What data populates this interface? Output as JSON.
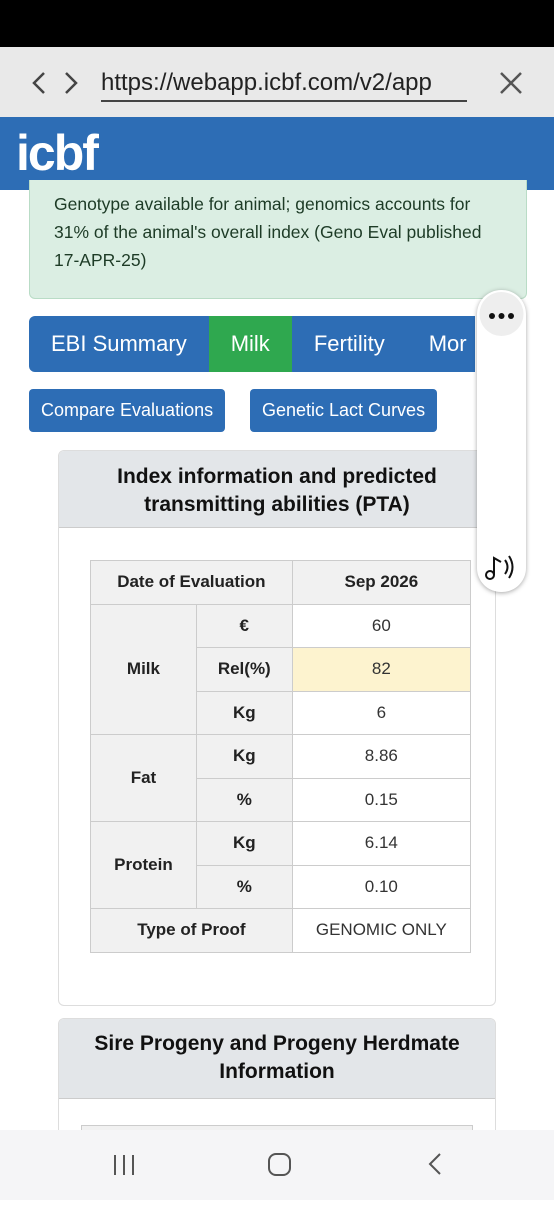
{
  "browser": {
    "url": "https://webapp.icbf.com/v2/app"
  },
  "header": {
    "logo": "icbf"
  },
  "notice": "Genotype available for animal; genomics accounts for 31% of the animal's overall index (Geno Eval published 17-APR-25)",
  "tabs": [
    {
      "label": "EBI Summary",
      "active": false
    },
    {
      "label": "Milk",
      "active": true
    },
    {
      "label": "Fertility",
      "active": false
    },
    {
      "label": "Mor",
      "active": false
    }
  ],
  "buttons": [
    "Compare Evaluations",
    "Genetic Lact Curves"
  ],
  "card": {
    "title": "Index information and predicted transmitting abilities (PTA)",
    "table": {
      "header": [
        "Date of Evaluation",
        "Sep 2026"
      ],
      "groups": [
        {
          "trait": "Milk",
          "rows": [
            [
              "€",
              "60"
            ],
            [
              "Rel(%)",
              "82"
            ],
            [
              "Kg",
              "6"
            ]
          ]
        },
        {
          "trait": "Fat",
          "rows": [
            [
              "Kg",
              "8.86"
            ],
            [
              "%",
              "0.15"
            ]
          ]
        },
        {
          "trait": "Protein",
          "rows": [
            [
              "Kg",
              "6.14"
            ],
            [
              "%",
              "0.10"
            ]
          ]
        }
      ],
      "footer": [
        "Type of Proof",
        "GENOMIC ONLY"
      ]
    }
  },
  "card2": {
    "title": "Sire Progeny and Progeny Herdmate Information"
  }
}
